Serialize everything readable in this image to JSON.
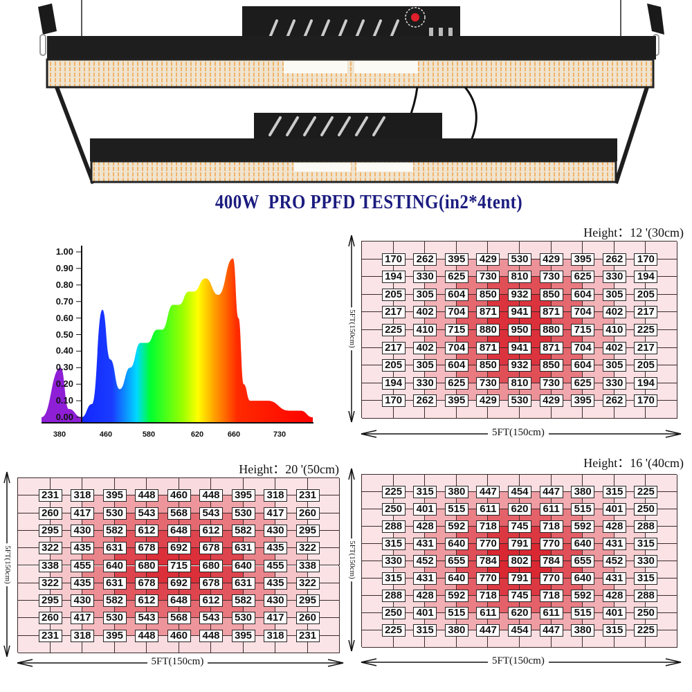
{
  "title": "400W  PRO PPFD TESTING(in2*4tent)",
  "colors": {
    "title": "#1c1c80",
    "heat_low": "#fbe4e7",
    "heat_high": "#d8202a",
    "grid_line": "#3a2a2a"
  },
  "chart_data": [
    {
      "type": "area",
      "title": "",
      "xlabel": "",
      "ylabel": "",
      "ylim": [
        0,
        1.0
      ],
      "y_ticks": [
        "0.00",
        "0.10",
        "0.20",
        "0.30",
        "0.40",
        "0.50",
        "0.60",
        "0.70",
        "0.80",
        "0.90",
        "1.00"
      ],
      "x_ticks": [
        "380",
        "460",
        "580",
        "620",
        "660",
        "730"
      ],
      "grid": false,
      "series": [
        {
          "name": "spectrum",
          "points": [
            [
              350,
              0
            ],
            [
              382,
              0.3
            ],
            [
              396,
              0.05
            ],
            [
              418,
              0.0
            ],
            [
              436,
              0.08
            ],
            [
              454,
              0.65
            ],
            [
              472,
              0.35
            ],
            [
              499,
              0.17
            ],
            [
              528,
              0.3
            ],
            [
              557,
              0.45
            ],
            [
              576,
              0.45
            ],
            [
              587,
              0.53
            ],
            [
              591,
              0.53
            ],
            [
              600,
              0.68
            ],
            [
              605,
              0.68
            ],
            [
              613,
              0.76
            ],
            [
              617,
              0.76
            ],
            [
              629,
              0.84
            ],
            [
              643,
              0.74
            ],
            [
              659,
              0.96
            ],
            [
              667,
              0.6
            ],
            [
              675,
              0.2
            ],
            [
              685,
              0.1
            ],
            [
              712,
              0.1
            ],
            [
              744,
              0.04
            ],
            [
              761,
              0.04
            ],
            [
              779,
              0.0
            ]
          ]
        }
      ]
    },
    {
      "type": "heatmap",
      "id": "h12",
      "height_label": "Height：12 '(30cm)",
      "width_label": "5FT(150cm)",
      "depth_label": "5FT(150cm)",
      "values": [
        [
          170,
          262,
          395,
          429,
          530,
          429,
          395,
          262,
          170
        ],
        [
          194,
          330,
          625,
          730,
          810,
          730,
          625,
          330,
          194
        ],
        [
          205,
          305,
          604,
          850,
          932,
          850,
          604,
          305,
          205
        ],
        [
          217,
          402,
          704,
          871,
          941,
          871,
          704,
          402,
          217
        ],
        [
          225,
          410,
          715,
          880,
          950,
          880,
          715,
          410,
          225
        ],
        [
          217,
          402,
          704,
          871,
          941,
          871,
          704,
          402,
          217
        ],
        [
          205,
          305,
          604,
          850,
          932,
          850,
          604,
          305,
          205
        ],
        [
          194,
          330,
          625,
          730,
          810,
          730,
          625,
          330,
          194
        ],
        [
          170,
          262,
          395,
          429,
          530,
          429,
          395,
          262,
          170
        ]
      ]
    },
    {
      "type": "heatmap",
      "id": "h20",
      "height_label": "Height：20 '(50cm)",
      "width_label": "5FT(150cm)",
      "depth_label": "5FT(150cm)",
      "values": [
        [
          231,
          318,
          395,
          448,
          460,
          448,
          395,
          318,
          231
        ],
        [
          260,
          417,
          530,
          543,
          568,
          543,
          530,
          417,
          260
        ],
        [
          295,
          430,
          582,
          612,
          648,
          612,
          582,
          430,
          295
        ],
        [
          322,
          435,
          631,
          678,
          692,
          678,
          631,
          435,
          322
        ],
        [
          338,
          455,
          640,
          680,
          715,
          680,
          640,
          455,
          338
        ],
        [
          322,
          435,
          631,
          678,
          692,
          678,
          631,
          435,
          322
        ],
        [
          295,
          430,
          582,
          612,
          648,
          612,
          582,
          430,
          295
        ],
        [
          260,
          417,
          530,
          543,
          568,
          543,
          530,
          417,
          260
        ],
        [
          231,
          318,
          395,
          448,
          460,
          448,
          395,
          318,
          231
        ]
      ]
    },
    {
      "type": "heatmap",
      "id": "h16",
      "height_label": "Height：16 '(40cm)",
      "width_label": "5FT(150cm)",
      "depth_label": "5FT(150cm)",
      "values": [
        [
          225,
          315,
          380,
          447,
          454,
          447,
          380,
          315,
          225
        ],
        [
          250,
          401,
          515,
          611,
          620,
          611,
          515,
          401,
          250
        ],
        [
          288,
          428,
          592,
          718,
          745,
          718,
          592,
          428,
          288
        ],
        [
          315,
          431,
          640,
          770,
          791,
          770,
          640,
          431,
          315
        ],
        [
          330,
          452,
          655,
          784,
          802,
          784,
          655,
          452,
          330
        ],
        [
          315,
          431,
          640,
          770,
          791,
          770,
          640,
          431,
          315
        ],
        [
          288,
          428,
          592,
          718,
          745,
          718,
          592,
          428,
          288
        ],
        [
          250,
          401,
          515,
          611,
          620,
          611,
          515,
          401,
          250
        ],
        [
          225,
          315,
          380,
          447,
          454,
          447,
          380,
          315,
          225
        ]
      ]
    }
  ]
}
